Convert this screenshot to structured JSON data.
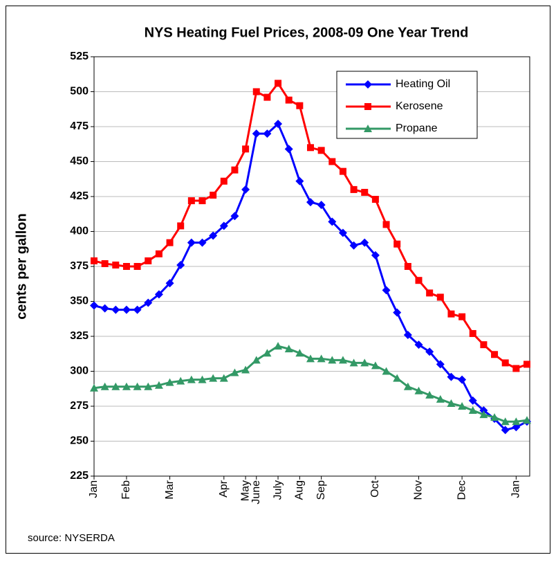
{
  "chart_data": {
    "type": "line",
    "title": "NYS Heating Fuel Prices, 2008-09 One Year Trend",
    "y_label": "cents per gallon",
    "source": "source: NYSERDA",
    "categories": [
      "Jan",
      null,
      null,
      "Feb",
      null,
      null,
      null,
      "Mar",
      null,
      null,
      null,
      null,
      "Apr",
      null,
      "May",
      "June",
      null,
      "July",
      null,
      "Aug",
      null,
      "Sep",
      null,
      null,
      null,
      null,
      "Oct",
      null,
      null,
      null,
      "Nov",
      null,
      null,
      null,
      "Dec",
      null,
      null,
      null,
      null,
      "Jan",
      null
    ],
    "series": [
      {
        "name": "Heating Oil",
        "color": "#0000ff",
        "marker": "diamond",
        "values": [
          347,
          345,
          344,
          344,
          344,
          349,
          355,
          363,
          376,
          392,
          392,
          397,
          404,
          411,
          430,
          470,
          470,
          477,
          459,
          436,
          421,
          419,
          407,
          399,
          390,
          392,
          383,
          358,
          342,
          326,
          319,
          314,
          305,
          296,
          294,
          279,
          272,
          266,
          258,
          260,
          264
        ]
      },
      {
        "name": "Kerosene",
        "color": "#ff0000",
        "marker": "square",
        "values": [
          379,
          377,
          376,
          375,
          375,
          379,
          384,
          392,
          404,
          422,
          422,
          426,
          436,
          444,
          459,
          500,
          496,
          506,
          494,
          490,
          460,
          458,
          450,
          443,
          430,
          428,
          423,
          405,
          391,
          375,
          365,
          356,
          353,
          341,
          339,
          327,
          319,
          312,
          306,
          302,
          305
        ]
      },
      {
        "name": "Propane",
        "color": "#339966",
        "marker": "triangle",
        "values": [
          288,
          289,
          289,
          289,
          289,
          289,
          290,
          292,
          293,
          294,
          294,
          295,
          295,
          299,
          301,
          308,
          313,
          318,
          316,
          313,
          309,
          309,
          308,
          308,
          306,
          306,
          304,
          300,
          295,
          289,
          286,
          283,
          280,
          277,
          275,
          272,
          269,
          267,
          264,
          264,
          265
        ]
      }
    ],
    "ylim": [
      225,
      525
    ],
    "yticks": [
      225,
      250,
      275,
      300,
      325,
      350,
      375,
      400,
      425,
      450,
      475,
      500,
      525
    ],
    "grid": true,
    "legend": "upper right"
  }
}
